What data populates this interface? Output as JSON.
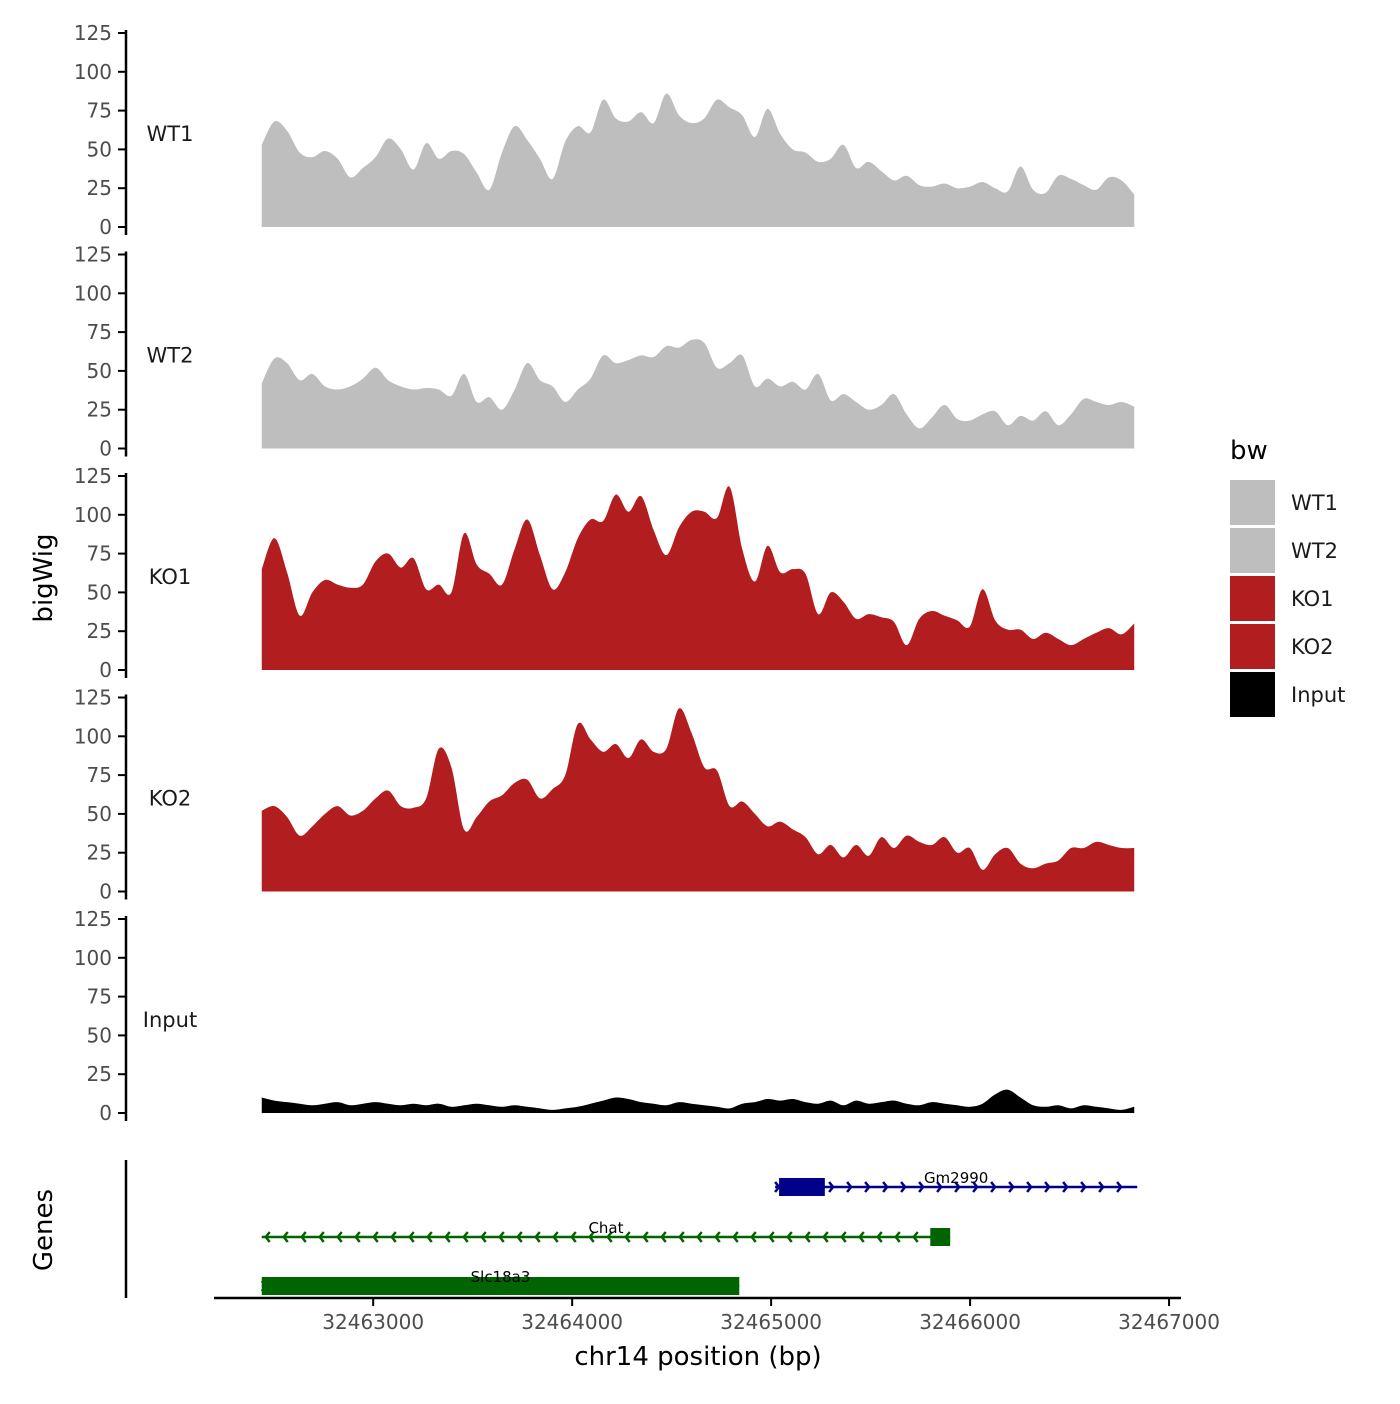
{
  "chart_data": {
    "type": "area",
    "ylabel": "bigWig",
    "xlabel": "chr14 position (bp)",
    "genes_label": "Genes",
    "region": {
      "start": 32462440,
      "end": 32466825
    },
    "xlim": [
      32462200,
      32467060
    ],
    "ylim": [
      0,
      125
    ],
    "y_ticks": [
      "0",
      "25",
      "50",
      "75",
      "100",
      "125"
    ],
    "y_tick_values": [
      0,
      25,
      50,
      75,
      100,
      125
    ],
    "x_ticks": [
      "32463000",
      "32464000",
      "32465000",
      "32466000",
      "32467000"
    ],
    "x_tick_values": [
      32463000,
      32464000,
      32465000,
      32466000,
      32467000
    ],
    "grid": false,
    "legend": {
      "title": "bw",
      "position": "right",
      "items": [
        {
          "label": "WT1",
          "color": "#bebebe"
        },
        {
          "label": "WT2",
          "color": "#bebebe"
        },
        {
          "label": "KO1",
          "color": "#b21e1f"
        },
        {
          "label": "KO2",
          "color": "#b21e1f"
        },
        {
          "label": "Input",
          "color": "#000000"
        }
      ]
    },
    "series": [
      {
        "name": "WT1",
        "color": "#bebebe",
        "values": [
          53,
          68,
          62,
          48,
          45,
          49,
          44,
          32,
          38,
          45,
          57,
          50,
          37,
          54,
          44,
          49,
          47,
          35,
          24,
          48,
          65,
          56,
          44,
          31,
          55,
          65,
          61,
          82,
          70,
          68,
          74,
          67,
          86,
          72,
          67,
          70,
          82,
          77,
          72,
          58,
          76,
          60,
          50,
          48,
          42,
          44,
          53,
          38,
          42,
          36,
          30,
          33,
          27,
          26,
          28,
          25,
          26,
          29,
          25,
          23,
          39,
          24,
          22,
          33,
          31,
          27,
          24,
          32,
          30,
          21
        ]
      },
      {
        "name": "WT2",
        "color": "#bebebe",
        "values": [
          42,
          58,
          55,
          44,
          48,
          40,
          38,
          40,
          45,
          52,
          44,
          40,
          38,
          39,
          38,
          34,
          48,
          30,
          33,
          25,
          38,
          55,
          44,
          40,
          30,
          38,
          45,
          60,
          55,
          57,
          60,
          59,
          66,
          65,
          70,
          68,
          52,
          55,
          60,
          40,
          45,
          40,
          43,
          38,
          48,
          31,
          35,
          30,
          25,
          28,
          35,
          22,
          13,
          20,
          28,
          19,
          18,
          22,
          24,
          15,
          21,
          18,
          24,
          15,
          22,
          32,
          30,
          28,
          30,
          27
        ]
      },
      {
        "name": "KO1",
        "color": "#b21e1f",
        "values": [
          65,
          85,
          63,
          35,
          50,
          58,
          55,
          53,
          55,
          70,
          75,
          66,
          72,
          52,
          55,
          50,
          88,
          68,
          62,
          55,
          78,
          97,
          74,
          52,
          63,
          85,
          97,
          96,
          113,
          102,
          112,
          90,
          74,
          92,
          102,
          102,
          98,
          118,
          78,
          57,
          80,
          63,
          65,
          62,
          36,
          50,
          44,
          33,
          36,
          34,
          31,
          16,
          33,
          38,
          35,
          32,
          28,
          52,
          32,
          26,
          26,
          20,
          24,
          20,
          16,
          20,
          24,
          27,
          23,
          30
        ]
      },
      {
        "name": "KO2",
        "color": "#b21e1f",
        "values": [
          52,
          55,
          48,
          36,
          42,
          50,
          55,
          49,
          52,
          60,
          65,
          55,
          54,
          60,
          92,
          80,
          40,
          48,
          58,
          62,
          70,
          72,
          60,
          66,
          75,
          108,
          98,
          90,
          95,
          86,
          98,
          90,
          92,
          118,
          102,
          80,
          78,
          55,
          58,
          50,
          42,
          45,
          40,
          35,
          24,
          30,
          22,
          30,
          23,
          35,
          28,
          36,
          32,
          30,
          35,
          25,
          28,
          14,
          24,
          28,
          18,
          15,
          18,
          20,
          28,
          28,
          32,
          30,
          28,
          28
        ]
      },
      {
        "name": "Input",
        "color": "#000000",
        "values": [
          10,
          8,
          7,
          6,
          5,
          6,
          7,
          5,
          6,
          7,
          6,
          5,
          6,
          5,
          6,
          4,
          5,
          6,
          5,
          4,
          5,
          4,
          3,
          2,
          3,
          4,
          6,
          8,
          10,
          9,
          7,
          6,
          5,
          7,
          6,
          5,
          4,
          3,
          6,
          7,
          9,
          8,
          9,
          7,
          6,
          8,
          5,
          8,
          6,
          7,
          8,
          6,
          5,
          7,
          6,
          5,
          4,
          6,
          12,
          15,
          10,
          5,
          4,
          5,
          3,
          5,
          4,
          3,
          2,
          4
        ]
      }
    ],
    "genes": [
      {
        "name": "Gm2990",
        "color": "#00008b",
        "strand": "+",
        "start": 32465020,
        "end": 32466840,
        "exon_start": 32465040,
        "exon_end": 32465270
      },
      {
        "name": "Chat",
        "color": "#006400",
        "strand": "-",
        "start": 32462440,
        "end": 32465900,
        "exon_start": 32465800,
        "exon_end": 32465900
      },
      {
        "name": "Slc18a3",
        "color": "#006400",
        "strand": "+",
        "start": 32462440,
        "end": 32464840,
        "exon_start": 32462440,
        "exon_end": 32464840
      }
    ]
  }
}
